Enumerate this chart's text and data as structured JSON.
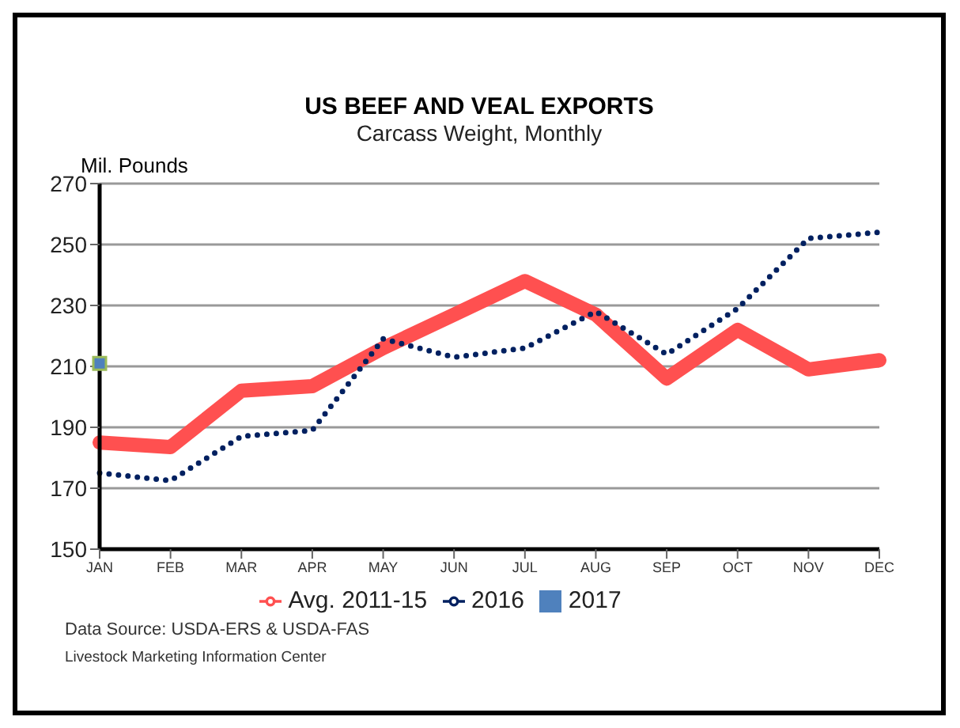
{
  "chart_data": {
    "type": "line",
    "title": "US BEEF AND VEAL EXPORTS",
    "subtitle": "Carcass Weight, Monthly",
    "ylabel": "Mil. Pounds",
    "categories": [
      "JAN",
      "FEB",
      "MAR",
      "APR",
      "MAY",
      "JUN",
      "JUL",
      "AUG",
      "SEP",
      "OCT",
      "NOV",
      "DEC"
    ],
    "series": [
      {
        "name": "Avg. 2011-15",
        "color": "#ff5050",
        "line_style": "solid",
        "values": [
          185,
          183.5,
          202,
          203.5,
          216,
          227,
          238,
          227,
          206,
          222,
          209,
          212
        ]
      },
      {
        "name": "2016",
        "color": "#002060",
        "line_style": "dotted",
        "values": [
          175,
          172.5,
          187,
          189,
          219,
          213,
          216,
          228,
          214,
          229,
          252,
          254
        ]
      },
      {
        "name": "2017",
        "type": "scatter",
        "marker": "square",
        "color": "#4f81bd",
        "values": [
          211,
          null,
          null,
          null,
          null,
          null,
          null,
          null,
          null,
          null,
          null,
          null
        ]
      }
    ],
    "ylim": [
      150,
      270
    ],
    "yticks": [
      150,
      170,
      190,
      210,
      230,
      250,
      270
    ],
    "grid": "y",
    "legend": "bottom",
    "annotations": [
      "Data Source:  USDA-ERS & USDA-FAS",
      "Livestock Marketing Information Center"
    ]
  }
}
